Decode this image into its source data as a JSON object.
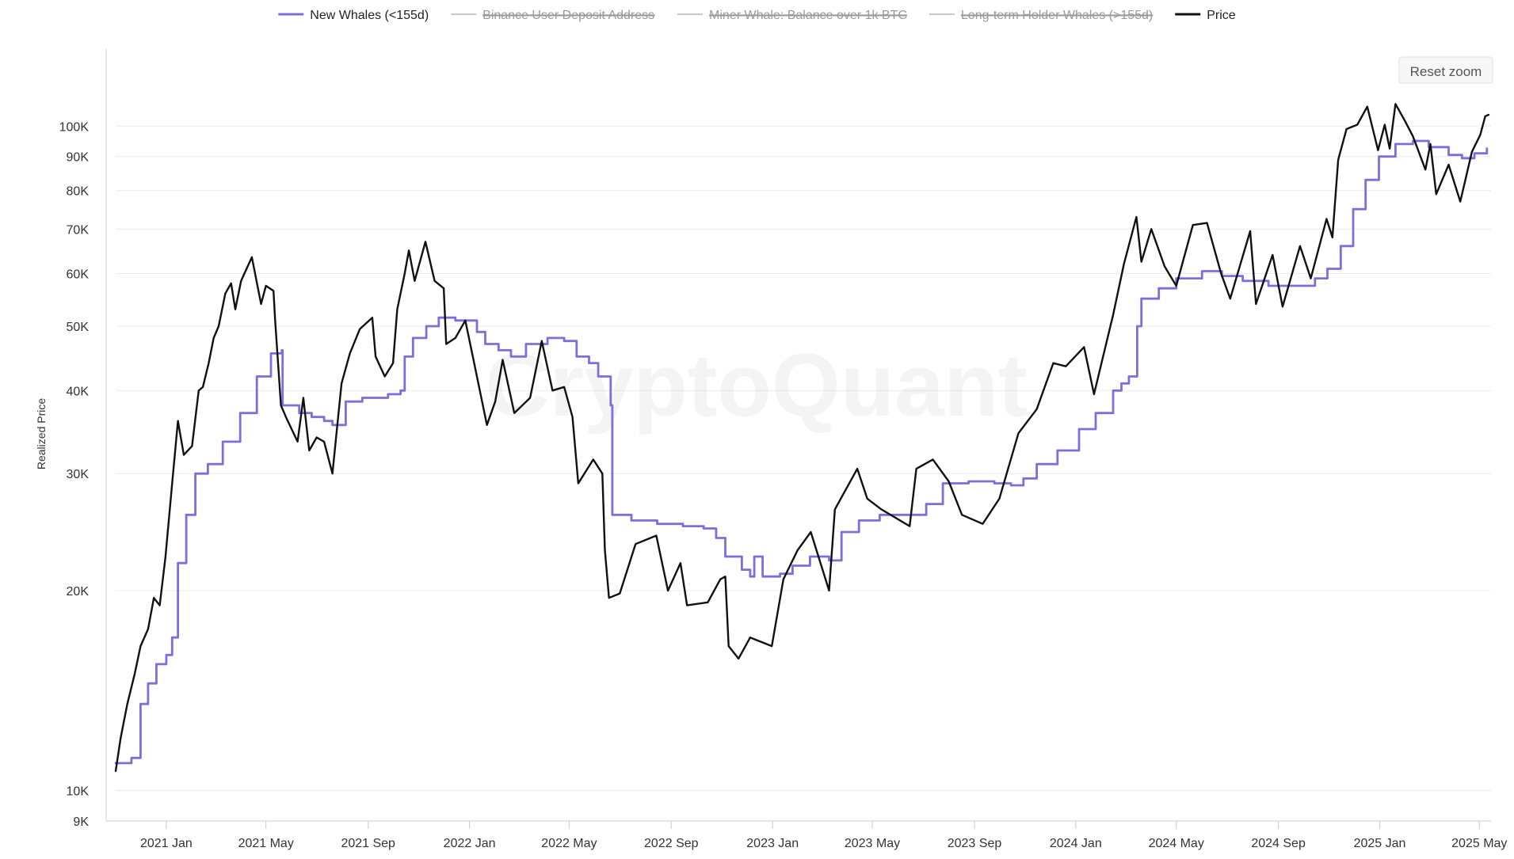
{
  "chart_data": {
    "type": "line",
    "ylabel": "Realized Price",
    "yscale": "log",
    "ylim": [
      9000,
      125000
    ],
    "xlim": [
      "2020-11-01",
      "2025-05-15"
    ],
    "y_ticks": [
      {
        "value": 9000,
        "label": "9K"
      },
      {
        "value": 10000,
        "label": "10K"
      },
      {
        "value": 20000,
        "label": "20K"
      },
      {
        "value": 30000,
        "label": "30K"
      },
      {
        "value": 40000,
        "label": "40K"
      },
      {
        "value": 50000,
        "label": "50K"
      },
      {
        "value": 60000,
        "label": "60K"
      },
      {
        "value": 70000,
        "label": "70K"
      },
      {
        "value": 80000,
        "label": "80K"
      },
      {
        "value": 90000,
        "label": "90K"
      },
      {
        "value": 100000,
        "label": "100K"
      }
    ],
    "x_ticks": [
      {
        "date": "2021-01-01",
        "label": "2021 Jan"
      },
      {
        "date": "2021-05-01",
        "label": "2021 May"
      },
      {
        "date": "2021-09-01",
        "label": "2021 Sep"
      },
      {
        "date": "2022-01-01",
        "label": "2022 Jan"
      },
      {
        "date": "2022-05-01",
        "label": "2022 May"
      },
      {
        "date": "2022-09-01",
        "label": "2022 Sep"
      },
      {
        "date": "2023-01-01",
        "label": "2023 Jan"
      },
      {
        "date": "2023-05-01",
        "label": "2023 May"
      },
      {
        "date": "2023-09-01",
        "label": "2023 Sep"
      },
      {
        "date": "2024-01-01",
        "label": "2024 Jan"
      },
      {
        "date": "2024-05-01",
        "label": "2024 May"
      },
      {
        "date": "2024-09-01",
        "label": "2024 Sep"
      },
      {
        "date": "2025-01-01",
        "label": "2025 Jan"
      },
      {
        "date": "2025-05-01",
        "label": "2025 May"
      }
    ],
    "legend": {
      "placement": "top-center",
      "items": [
        {
          "name": "New Whales (<155d)",
          "color": "#7b6fdd",
          "visible": true
        },
        {
          "name": "Binance User Deposit Address",
          "color": "#c8c8c8",
          "visible": false
        },
        {
          "name": "Miner Whale: Balance over 1k BTC",
          "color": "#c8c8c8",
          "visible": false
        },
        {
          "name": "Long-term Holder Whales (>155d)",
          "color": "#c8c8c8",
          "visible": false
        },
        {
          "name": "Price",
          "color": "#111111",
          "visible": true
        }
      ]
    },
    "series": [
      {
        "name": "New Whales (<155d)",
        "color": "#7b6fdd",
        "points": [
          [
            "2020-11-01",
            11000
          ],
          [
            "2020-11-20",
            11200
          ],
          [
            "2020-12-01",
            13500
          ],
          [
            "2020-12-10",
            14500
          ],
          [
            "2020-12-20",
            15500
          ],
          [
            "2021-01-01",
            16000
          ],
          [
            "2021-01-08",
            17000
          ],
          [
            "2021-01-15",
            22000
          ],
          [
            "2021-01-25",
            26000
          ],
          [
            "2021-02-05",
            30000
          ],
          [
            "2021-02-20",
            31000
          ],
          [
            "2021-03-10",
            33500
          ],
          [
            "2021-03-31",
            37000
          ],
          [
            "2021-04-20",
            42000
          ],
          [
            "2021-05-07",
            45500
          ],
          [
            "2021-05-20",
            46000
          ],
          [
            "2021-05-21",
            38000
          ],
          [
            "2021-06-10",
            37000
          ],
          [
            "2021-06-25",
            36500
          ],
          [
            "2021-07-10",
            36000
          ],
          [
            "2021-07-20",
            35500
          ],
          [
            "2021-08-05",
            38500
          ],
          [
            "2021-08-25",
            39000
          ],
          [
            "2021-09-25",
            39500
          ],
          [
            "2021-10-10",
            40000
          ],
          [
            "2021-10-15",
            45000
          ],
          [
            "2021-10-25",
            48000
          ],
          [
            "2021-11-10",
            50000
          ],
          [
            "2021-11-25",
            51500
          ],
          [
            "2021-12-15",
            51000
          ],
          [
            "2022-01-10",
            49000
          ],
          [
            "2022-01-20",
            47000
          ],
          [
            "2022-02-05",
            46000
          ],
          [
            "2022-02-20",
            45000
          ],
          [
            "2022-03-10",
            47000
          ],
          [
            "2022-04-05",
            48000
          ],
          [
            "2022-04-25",
            47500
          ],
          [
            "2022-05-10",
            45000
          ],
          [
            "2022-05-25",
            44000
          ],
          [
            "2022-06-05",
            42000
          ],
          [
            "2022-06-20",
            38000
          ],
          [
            "2022-06-22",
            26000
          ],
          [
            "2022-07-15",
            25500
          ],
          [
            "2022-08-15",
            25200
          ],
          [
            "2022-09-15",
            25000
          ],
          [
            "2022-10-10",
            24800
          ],
          [
            "2022-10-25",
            24000
          ],
          [
            "2022-11-05",
            22500
          ],
          [
            "2022-11-25",
            21500
          ],
          [
            "2022-12-05",
            21000
          ],
          [
            "2022-12-10",
            22500
          ],
          [
            "2022-12-20",
            21000
          ],
          [
            "2023-01-10",
            21200
          ],
          [
            "2023-01-25",
            21800
          ],
          [
            "2023-02-15",
            22500
          ],
          [
            "2023-03-10",
            22200
          ],
          [
            "2023-03-25",
            24500
          ],
          [
            "2023-04-15",
            25500
          ],
          [
            "2023-05-10",
            26000
          ],
          [
            "2023-06-15",
            26000
          ],
          [
            "2023-07-05",
            27000
          ],
          [
            "2023-07-25",
            29000
          ],
          [
            "2023-08-25",
            29200
          ],
          [
            "2023-09-25",
            29000
          ],
          [
            "2023-10-15",
            28800
          ],
          [
            "2023-10-30",
            29500
          ],
          [
            "2023-11-15",
            31000
          ],
          [
            "2023-12-10",
            32500
          ],
          [
            "2024-01-05",
            35000
          ],
          [
            "2024-01-25",
            37000
          ],
          [
            "2024-02-15",
            40000
          ],
          [
            "2024-02-25",
            41000
          ],
          [
            "2024-03-05",
            42000
          ],
          [
            "2024-03-15",
            50000
          ],
          [
            "2024-03-20",
            55000
          ],
          [
            "2024-04-10",
            57000
          ],
          [
            "2024-05-01",
            59000
          ],
          [
            "2024-06-01",
            60500
          ],
          [
            "2024-06-25",
            59500
          ],
          [
            "2024-07-20",
            58500
          ],
          [
            "2024-08-20",
            57500
          ],
          [
            "2024-09-25",
            57500
          ],
          [
            "2024-10-15",
            59000
          ],
          [
            "2024-10-30",
            61000
          ],
          [
            "2024-11-15",
            66000
          ],
          [
            "2024-11-30",
            75000
          ],
          [
            "2024-12-15",
            83000
          ],
          [
            "2024-12-31",
            90000
          ],
          [
            "2025-01-20",
            94000
          ],
          [
            "2025-02-10",
            95000
          ],
          [
            "2025-03-01",
            93000
          ],
          [
            "2025-03-25",
            90500
          ],
          [
            "2025-04-10",
            89500
          ],
          [
            "2025-04-25",
            91000
          ],
          [
            "2025-05-10",
            92500
          ]
        ]
      },
      {
        "name": "Price",
        "color": "#111111",
        "points": [
          [
            "2020-11-01",
            10700
          ],
          [
            "2020-11-07",
            12000
          ],
          [
            "2020-11-15",
            13500
          ],
          [
            "2020-11-24",
            15000
          ],
          [
            "2020-12-01",
            16500
          ],
          [
            "2020-12-10",
            17500
          ],
          [
            "2020-12-17",
            19500
          ],
          [
            "2020-12-24",
            19000
          ],
          [
            "2020-12-31",
            22500
          ],
          [
            "2021-01-08",
            29000
          ],
          [
            "2021-01-15",
            36000
          ],
          [
            "2021-01-22",
            32000
          ],
          [
            "2021-02-01",
            33000
          ],
          [
            "2021-02-09",
            40000
          ],
          [
            "2021-02-14",
            40500
          ],
          [
            "2021-02-21",
            44000
          ],
          [
            "2021-02-27",
            48000
          ],
          [
            "2021-03-05",
            50000
          ],
          [
            "2021-03-13",
            56000
          ],
          [
            "2021-03-20",
            58000
          ],
          [
            "2021-03-25",
            53000
          ],
          [
            "2021-04-01",
            58500
          ],
          [
            "2021-04-14",
            63500
          ],
          [
            "2021-04-25",
            54000
          ],
          [
            "2021-05-01",
            57500
          ],
          [
            "2021-05-10",
            56500
          ],
          [
            "2021-05-12",
            51000
          ],
          [
            "2021-05-19",
            38000
          ],
          [
            "2021-05-25",
            36500
          ],
          [
            "2021-06-08",
            33500
          ],
          [
            "2021-06-15",
            39000
          ],
          [
            "2021-06-22",
            32500
          ],
          [
            "2021-07-01",
            34000
          ],
          [
            "2021-07-10",
            33500
          ],
          [
            "2021-07-20",
            30000
          ],
          [
            "2021-07-31",
            41000
          ],
          [
            "2021-08-10",
            45500
          ],
          [
            "2021-08-22",
            49500
          ],
          [
            "2021-09-06",
            51500
          ],
          [
            "2021-09-10",
            45000
          ],
          [
            "2021-09-21",
            42000
          ],
          [
            "2021-10-01",
            44000
          ],
          [
            "2021-10-06",
            53000
          ],
          [
            "2021-10-15",
            60000
          ],
          [
            "2021-10-20",
            65000
          ],
          [
            "2021-10-27",
            58500
          ],
          [
            "2021-11-09",
            67000
          ],
          [
            "2021-11-20",
            58500
          ],
          [
            "2021-12-01",
            57000
          ],
          [
            "2021-12-04",
            47000
          ],
          [
            "2021-12-15",
            48000
          ],
          [
            "2021-12-27",
            51000
          ],
          [
            "2022-01-05",
            45000
          ],
          [
            "2022-01-22",
            35500
          ],
          [
            "2022-02-01",
            38500
          ],
          [
            "2022-02-10",
            44500
          ],
          [
            "2022-02-24",
            37000
          ],
          [
            "2022-03-15",
            39000
          ],
          [
            "2022-03-29",
            47500
          ],
          [
            "2022-04-11",
            40000
          ],
          [
            "2022-04-25",
            40500
          ],
          [
            "2022-05-05",
            36500
          ],
          [
            "2022-05-12",
            29000
          ],
          [
            "2022-05-30",
            31500
          ],
          [
            "2022-06-10",
            30000
          ],
          [
            "2022-06-13",
            23000
          ],
          [
            "2022-06-18",
            19500
          ],
          [
            "2022-07-01",
            19800
          ],
          [
            "2022-07-20",
            23500
          ],
          [
            "2022-08-14",
            24200
          ],
          [
            "2022-08-28",
            20000
          ],
          [
            "2022-09-12",
            22000
          ],
          [
            "2022-09-20",
            19000
          ],
          [
            "2022-10-15",
            19200
          ],
          [
            "2022-10-30",
            20800
          ],
          [
            "2022-11-05",
            21000
          ],
          [
            "2022-11-09",
            16500
          ],
          [
            "2022-11-21",
            15800
          ],
          [
            "2022-12-05",
            17000
          ],
          [
            "2022-12-31",
            16500
          ],
          [
            "2023-01-14",
            20800
          ],
          [
            "2023-01-31",
            23000
          ],
          [
            "2023-02-16",
            24500
          ],
          [
            "2023-03-10",
            20000
          ],
          [
            "2023-03-17",
            26500
          ],
          [
            "2023-04-13",
            30500
          ],
          [
            "2023-04-25",
            27500
          ],
          [
            "2023-05-12",
            26500
          ],
          [
            "2023-06-15",
            25000
          ],
          [
            "2023-06-23",
            30500
          ],
          [
            "2023-07-13",
            31500
          ],
          [
            "2023-08-01",
            29200
          ],
          [
            "2023-08-17",
            26000
          ],
          [
            "2023-09-11",
            25200
          ],
          [
            "2023-10-01",
            27500
          ],
          [
            "2023-10-24",
            34500
          ],
          [
            "2023-11-15",
            37500
          ],
          [
            "2023-12-05",
            44000
          ],
          [
            "2023-12-20",
            43500
          ],
          [
            "2024-01-11",
            46500
          ],
          [
            "2024-01-23",
            39500
          ],
          [
            "2024-02-15",
            52000
          ],
          [
            "2024-02-28",
            62000
          ],
          [
            "2024-03-14",
            73000
          ],
          [
            "2024-03-20",
            62500
          ],
          [
            "2024-04-01",
            70000
          ],
          [
            "2024-04-17",
            61500
          ],
          [
            "2024-05-01",
            57500
          ],
          [
            "2024-05-21",
            71000
          ],
          [
            "2024-06-07",
            71500
          ],
          [
            "2024-06-24",
            60000
          ],
          [
            "2024-07-05",
            55000
          ],
          [
            "2024-07-29",
            69500
          ],
          [
            "2024-08-05",
            54000
          ],
          [
            "2024-08-25",
            64000
          ],
          [
            "2024-09-06",
            53500
          ],
          [
            "2024-09-27",
            66000
          ],
          [
            "2024-10-10",
            59000
          ],
          [
            "2024-10-29",
            72500
          ],
          [
            "2024-11-05",
            68000
          ],
          [
            "2024-11-12",
            89000
          ],
          [
            "2024-11-22",
            99000
          ],
          [
            "2024-12-05",
            100500
          ],
          [
            "2024-12-17",
            107000
          ],
          [
            "2024-12-30",
            92000
          ],
          [
            "2025-01-07",
            100500
          ],
          [
            "2025-01-13",
            92500
          ],
          [
            "2025-01-20",
            108000
          ],
          [
            "2025-01-31",
            102000
          ],
          [
            "2025-02-10",
            96500
          ],
          [
            "2025-02-25",
            86000
          ],
          [
            "2025-03-03",
            94000
          ],
          [
            "2025-03-10",
            79000
          ],
          [
            "2025-03-25",
            87500
          ],
          [
            "2025-04-08",
            77000
          ],
          [
            "2025-04-22",
            91500
          ],
          [
            "2025-05-02",
            97000
          ],
          [
            "2025-05-08",
            103500
          ],
          [
            "2025-05-12",
            104000
          ]
        ]
      }
    ]
  },
  "ui": {
    "reset_zoom_label": "Reset zoom",
    "watermark": "CryptoQuant"
  }
}
